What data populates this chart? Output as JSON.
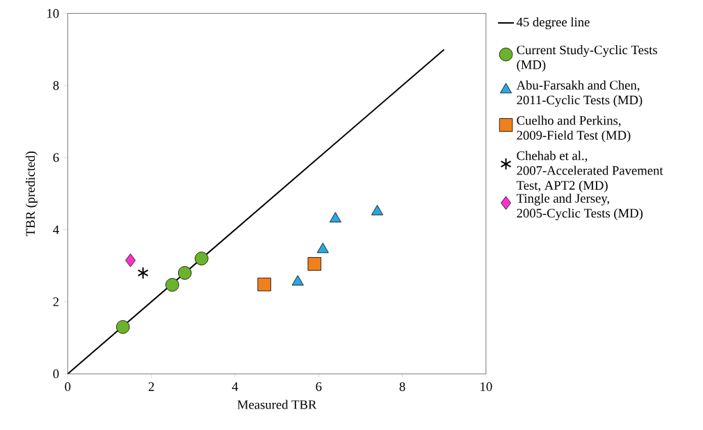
{
  "chart_data": {
    "type": "scatter",
    "xlabel": "Measured TBR",
    "ylabel": "TBR (predicted)",
    "xlim": [
      0,
      10
    ],
    "ylim": [
      0,
      10
    ],
    "xticks": [
      0,
      2,
      4,
      6,
      8,
      10
    ],
    "yticks": [
      0,
      2,
      4,
      6,
      8,
      10
    ],
    "legend": "right",
    "series": [
      {
        "name": "45 degree line",
        "type": "line",
        "color": "#000000",
        "marker": "none",
        "x": [
          0,
          9
        ],
        "values": [
          0,
          9
        ]
      },
      {
        "name": "Current Study-Cyclic Tests (MD)",
        "color": "#6ab42d",
        "marker": "circle",
        "x": [
          1.32,
          2.5,
          2.8,
          3.2
        ],
        "values": [
          1.3,
          2.47,
          2.8,
          3.2
        ]
      },
      {
        "name": "Abu-Farsakh and Chen, 2011-Cyclic Tests (MD)",
        "color": "#29a8e0",
        "marker": "triangle",
        "x": [
          5.5,
          6.1,
          6.4,
          7.4
        ],
        "values": [
          2.55,
          3.45,
          4.3,
          4.5
        ]
      },
      {
        "name": "Cuelho and Perkins, 2009-Field Test (MD)",
        "color": "#f07f1e",
        "marker": "square",
        "x": [
          4.7,
          5.9
        ],
        "values": [
          2.48,
          3.05
        ]
      },
      {
        "name": "Chehab et al., 2007-Accelerated Pavement Test, APT2 (MD)",
        "color": "#000000",
        "marker": "cross",
        "x": [
          1.8
        ],
        "values": [
          2.8
        ]
      },
      {
        "name": "Tingle and Jersey, 2005-Cyclic Tests (MD)",
        "color": "#ff33cc",
        "marker": "diamond",
        "x": [
          1.5
        ],
        "values": [
          3.15
        ]
      }
    ]
  }
}
